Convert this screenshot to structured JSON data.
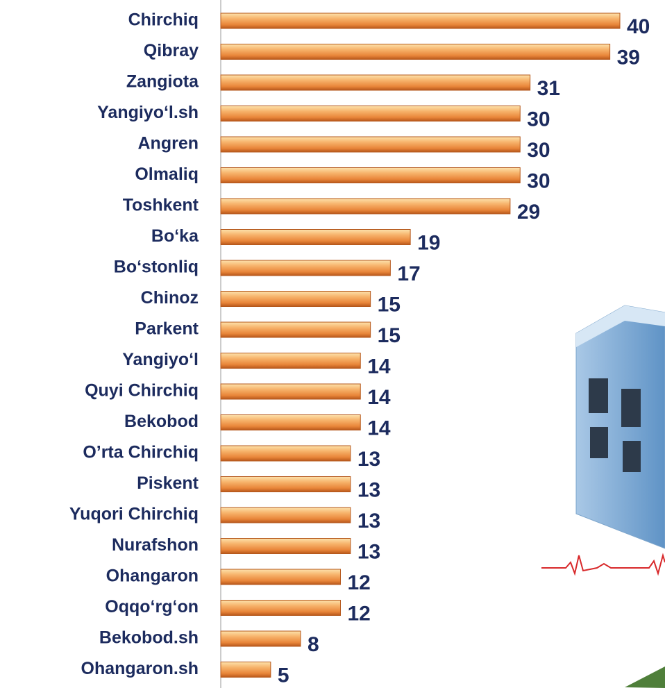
{
  "chart_data": {
    "type": "barh",
    "categories": [
      "Chirchiq",
      "Qibray",
      "Zangiota",
      "Yangiyo‘l.sh",
      "Angren",
      "Olmaliq",
      "Toshkent",
      "Bo‘ka",
      "Bo‘stonliq",
      "Chinoz",
      "Parkent",
      "Yangiyo‘l",
      "Quyi Chirchiq",
      "Bekobod",
      "O’rta Chirchiq",
      "Piskent",
      "Yuqori Chirchiq",
      "Nurafshon",
      "Ohangaron",
      "Oqqo‘rg‘on",
      "Bekobod.sh",
      "Ohangaron.sh"
    ],
    "values": [
      40,
      39,
      31,
      30,
      30,
      30,
      29,
      19,
      17,
      15,
      15,
      14,
      14,
      14,
      13,
      13,
      13,
      13,
      12,
      12,
      8,
      5
    ],
    "color": "#f39a4b",
    "xlim": [
      0,
      40
    ]
  }
}
